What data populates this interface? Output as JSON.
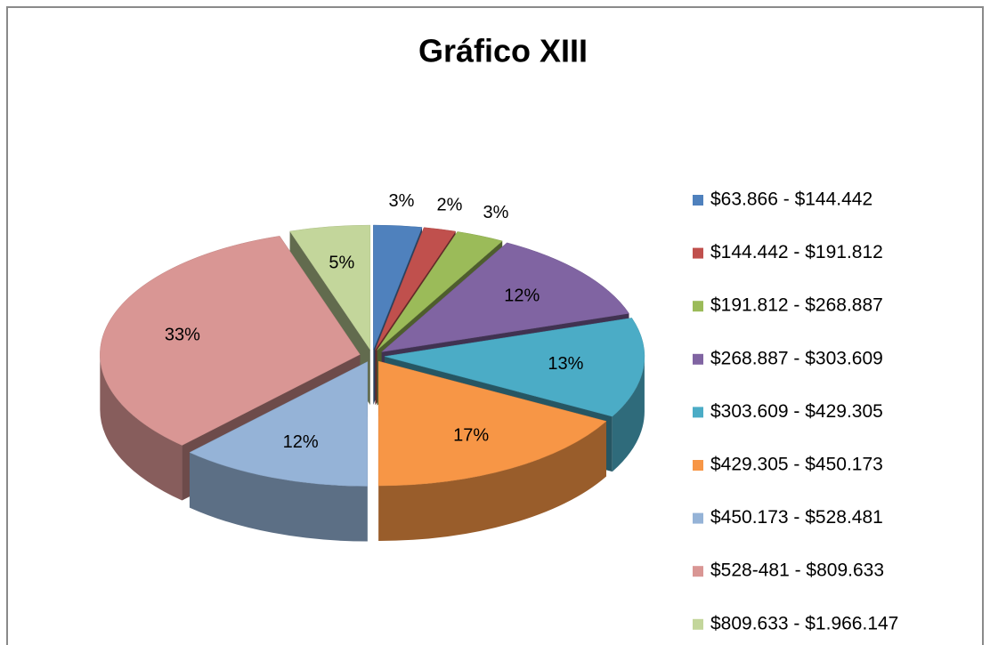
{
  "chart_data": {
    "type": "pie3d",
    "title": "Gráfico  XIII",
    "categories": [
      "$63.866 - $144.442",
      "$144.442 - $191.812",
      "$191.812 - $268.887",
      "$268.887 - $303.609",
      "$303.609 - $429.305",
      "$429.305 - $450.173",
      "$450.173 - $528.481",
      "$528-481 - $809.633",
      "$809.633 - $1.966.147"
    ],
    "values": [
      3,
      2,
      3,
      12,
      13,
      17,
      12,
      33,
      5
    ],
    "value_labels": [
      "3%",
      "2%",
      "3%",
      "12%",
      "13%",
      "17%",
      "12%",
      "33%",
      "5%"
    ],
    "colors": [
      "#4f81bd",
      "#c0504d",
      "#9bbb59",
      "#8064a2",
      "#4bacc6",
      "#f79646",
      "#95b3d7",
      "#d99694",
      "#c3d69b"
    ],
    "legend": "right"
  }
}
